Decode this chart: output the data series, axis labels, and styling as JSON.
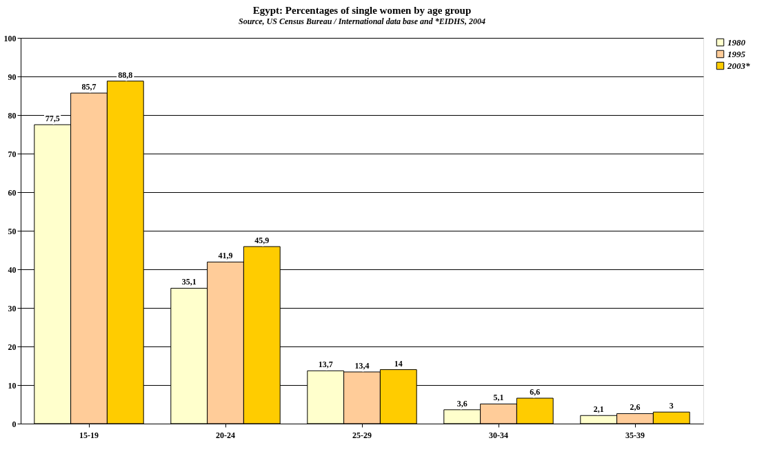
{
  "chart_data": {
    "type": "bar",
    "title": "Egypt: Percentages of single women by age group",
    "subtitle": "Source, US Census Bureau / International data base and *EIDHS, 2004",
    "categories": [
      "15-19",
      "20-24",
      "25-29",
      "30-34",
      "35-39"
    ],
    "series": [
      {
        "name": "1980",
        "color": "#ffffcc",
        "values": [
          77.5,
          35.1,
          13.7,
          3.6,
          2.1
        ],
        "value_labels": [
          "77,5",
          "35,1",
          "13,7",
          "3,6",
          "2,1"
        ]
      },
      {
        "name": "1995",
        "color": "#ffcc99",
        "values": [
          85.7,
          41.9,
          13.4,
          5.1,
          2.6
        ],
        "value_labels": [
          "85,7",
          "41,9",
          "13,4",
          "5,1",
          "2,6"
        ]
      },
      {
        "name": "2003*",
        "color": "#ffcc00",
        "values": [
          88.8,
          45.9,
          14,
          6.6,
          3
        ],
        "value_labels": [
          "88,8",
          "45,9",
          "14",
          "6,6",
          "3"
        ]
      }
    ],
    "ylim": [
      0,
      100
    ],
    "yticks": [
      0,
      10,
      20,
      30,
      40,
      50,
      60,
      70,
      80,
      90,
      100
    ],
    "grid": "y",
    "legend": "right"
  }
}
